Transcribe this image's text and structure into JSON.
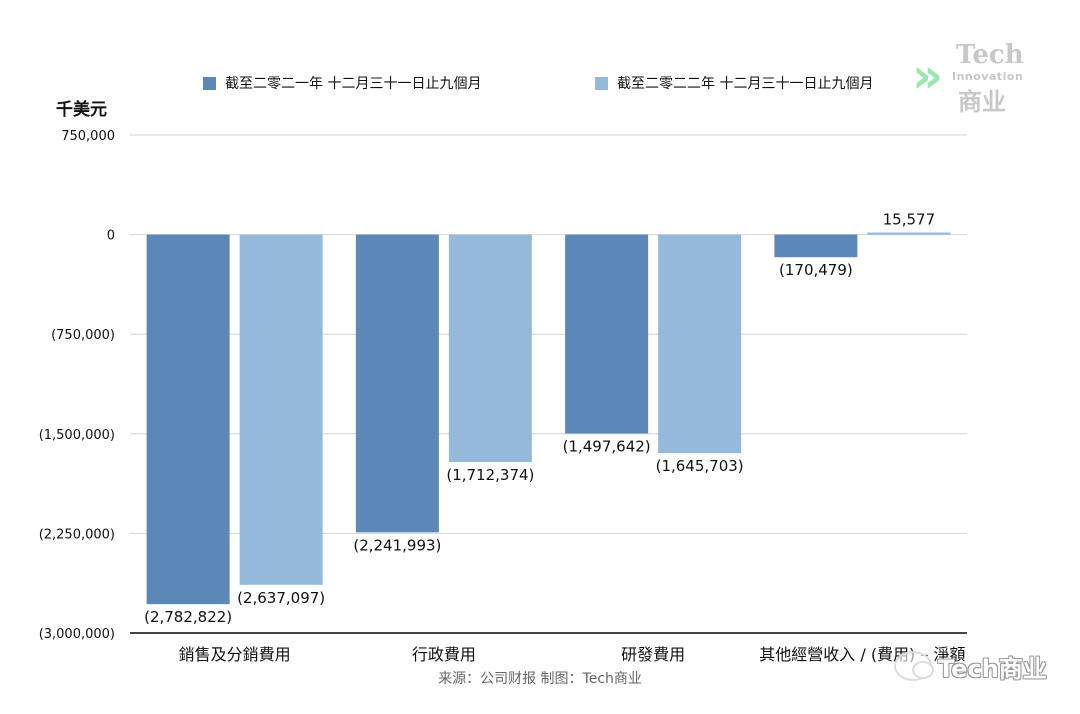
{
  "chart_data": {
    "type": "bar",
    "unit_label": "千美元",
    "categories": [
      "銷售及分銷費用",
      "行政費用",
      "研發費用",
      "其他經營收入 / (費用) – 淨額"
    ],
    "series": [
      {
        "name": "截至二零二一年 十二月三十一日止九個月",
        "color": "#5b87b9",
        "values": [
          -2782822,
          -2241993,
          -1497642,
          -170479
        ],
        "labels": [
          "(2,782,822)",
          "(2,241,993)",
          "(1,497,642)",
          "(170,479)"
        ]
      },
      {
        "name": "截至二零二二年 十二月三十一日止九個月",
        "color": "#95b9db",
        "values": [
          -2637097,
          -1712374,
          -1645703,
          15577
        ],
        "labels": [
          "(2,637,097)",
          "(1,712,374)",
          "(1,645,703)",
          "15,577"
        ]
      }
    ],
    "ylim": [
      -3000000,
      750000
    ],
    "yticks": [
      750000,
      0,
      -750000,
      -1500000,
      -2250000,
      -3000000
    ],
    "ytick_labels": [
      "750,000",
      "0",
      "(750,000)",
      "(1,500,000)",
      "(2,250,000)",
      "(3,000,000)"
    ],
    "grid": true,
    "legend_position": "top"
  },
  "source_text": "来源：公司财报 制图：Tech商业",
  "logo": {
    "line1": "Tech",
    "line2": "Innovation",
    "line3": "商业"
  },
  "watermark": "Tech商业"
}
